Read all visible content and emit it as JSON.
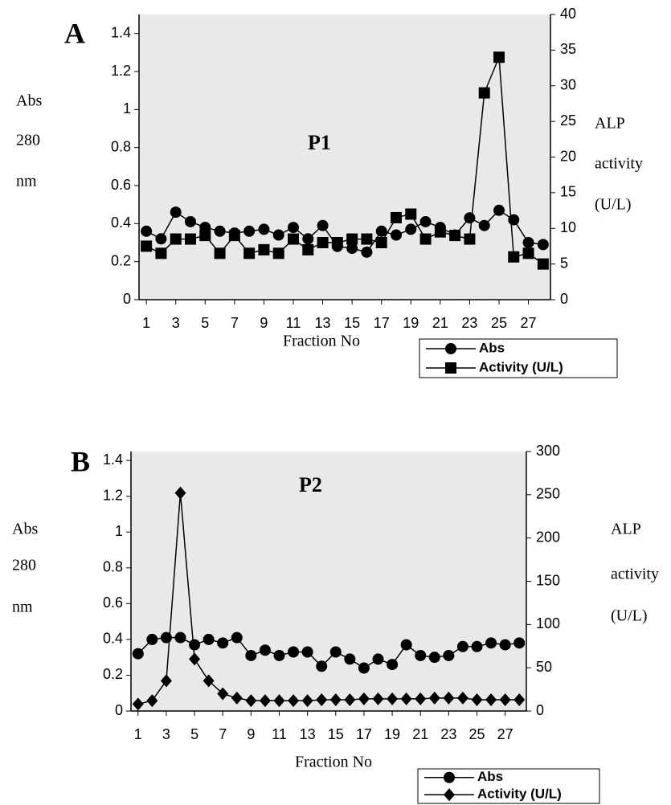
{
  "chart_data": [
    {
      "type": "line",
      "panel_label": "A",
      "annotation": "P1",
      "ylabel": [
        "Abs",
        "280",
        "nm"
      ],
      "y2label": [
        "ALP",
        "activity",
        "(U/L)"
      ],
      "xlabel": "Fraction No",
      "x": [
        1,
        2,
        3,
        4,
        5,
        6,
        7,
        8,
        9,
        10,
        11,
        12,
        13,
        14,
        15,
        16,
        17,
        18,
        19,
        20,
        21,
        22,
        23,
        24,
        25,
        26,
        27,
        28
      ],
      "xlim": [
        0.5,
        28.5
      ],
      "xticks": [
        1,
        3,
        5,
        7,
        9,
        11,
        13,
        15,
        17,
        19,
        21,
        23,
        25,
        27
      ],
      "ylim": [
        0,
        1.5
      ],
      "yticks": [
        0,
        0.2,
        0.4,
        0.6,
        0.8,
        1,
        1.2,
        1.4
      ],
      "y2lim": [
        0,
        40
      ],
      "y2ticks": [
        0,
        5,
        10,
        15,
        20,
        25,
        30,
        35,
        40
      ],
      "series": [
        {
          "name": "Abs",
          "color": "#000000",
          "marker": "circle",
          "values": [
            0.36,
            0.32,
            0.46,
            0.41,
            0.38,
            0.36,
            0.35,
            0.36,
            0.37,
            0.34,
            0.38,
            0.32,
            0.39,
            0.28,
            0.27,
            0.25,
            0.36,
            0.34,
            0.37,
            0.41,
            0.38,
            0.34,
            0.43,
            0.39,
            0.47,
            0.42,
            0.3,
            0.29
          ]
        },
        {
          "name": "Activity (U/L)",
          "color": "#000000",
          "marker": "square",
          "axis": "y2",
          "values": [
            7.5,
            6.5,
            8.5,
            8.5,
            9,
            6.5,
            9,
            6.5,
            7,
            6.5,
            8.5,
            7,
            8,
            8,
            8.5,
            8.5,
            8,
            11.5,
            12,
            8.5,
            9.5,
            9,
            8.5,
            29,
            34,
            6,
            6.5,
            5
          ]
        }
      ]
    },
    {
      "type": "line",
      "panel_label": "B",
      "annotation": "P2",
      "ylabel": [
        "Abs",
        "280",
        "nm"
      ],
      "y2label": [
        "ALP",
        "activity",
        "(U/L)"
      ],
      "xlabel": "Fraction No",
      "x": [
        1,
        2,
        3,
        4,
        5,
        6,
        7,
        8,
        9,
        10,
        11,
        12,
        13,
        14,
        15,
        16,
        17,
        18,
        19,
        20,
        21,
        22,
        23,
        24,
        25,
        26,
        27,
        28
      ],
      "xlim": [
        0.5,
        28.5
      ],
      "xticks": [
        1,
        3,
        5,
        7,
        9,
        11,
        13,
        15,
        17,
        19,
        21,
        23,
        25,
        27
      ],
      "ylim": [
        0,
        1.45
      ],
      "yticks": [
        0,
        0.2,
        0.4,
        0.6,
        0.8,
        1,
        1.2,
        1.4
      ],
      "y2lim": [
        0,
        300
      ],
      "y2ticks": [
        0,
        50,
        100,
        150,
        200,
        250,
        300
      ],
      "series": [
        {
          "name": "Abs",
          "color": "#000000",
          "marker": "circle",
          "values": [
            0.32,
            0.4,
            0.41,
            0.41,
            0.37,
            0.4,
            0.38,
            0.41,
            0.31,
            0.34,
            0.31,
            0.33,
            0.33,
            0.25,
            0.33,
            0.29,
            0.24,
            0.29,
            0.26,
            0.37,
            0.31,
            0.3,
            0.31,
            0.36,
            0.36,
            0.38,
            0.37,
            0.38
          ]
        },
        {
          "name": "Activity (U/L)",
          "color": "#000000",
          "marker": "diamond",
          "axis": "y2",
          "values": [
            8,
            12,
            35,
            252,
            60,
            35,
            20,
            15,
            12,
            12,
            12,
            12,
            12,
            13,
            13,
            13,
            14,
            14,
            14,
            14,
            14,
            15,
            15,
            15,
            13,
            13,
            13,
            13
          ]
        }
      ]
    }
  ]
}
